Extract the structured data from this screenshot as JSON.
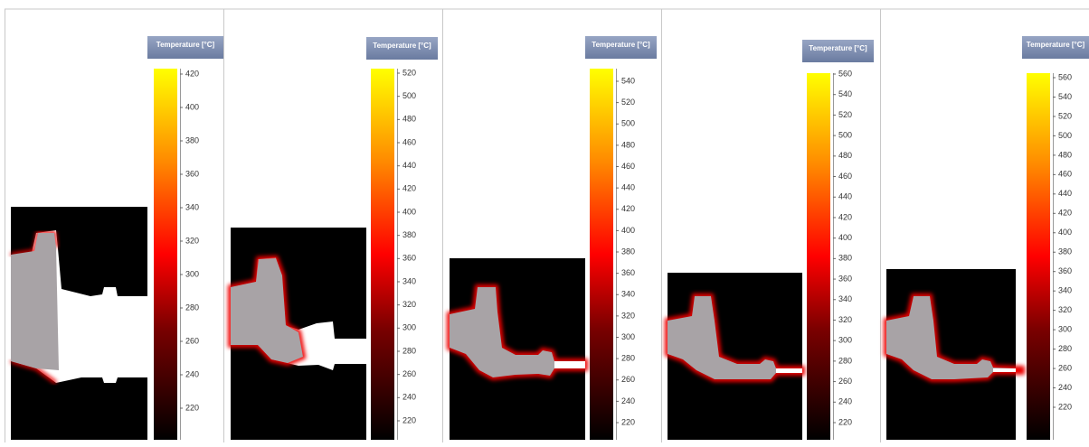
{
  "panels": [
    {
      "title": "Temperature [°C]",
      "ticks": [
        420,
        400,
        380,
        360,
        340,
        320,
        300,
        280,
        260,
        240,
        220
      ]
    },
    {
      "title": "Temperature [°C]",
      "ticks": [
        520,
        500,
        480,
        460,
        440,
        420,
        400,
        380,
        360,
        340,
        320,
        300,
        280,
        260,
        240,
        220
      ]
    },
    {
      "title": "Temperature [°C]",
      "ticks": [
        540,
        520,
        500,
        480,
        460,
        440,
        420,
        400,
        380,
        360,
        340,
        320,
        300,
        280,
        260,
        240,
        220
      ]
    },
    {
      "title": "Temperature [°C]",
      "ticks": [
        560,
        540,
        520,
        500,
        480,
        460,
        440,
        420,
        400,
        380,
        360,
        340,
        320,
        300,
        280,
        260,
        240,
        220
      ]
    },
    {
      "title": "Temperature [°C]",
      "ticks": [
        560,
        540,
        520,
        500,
        480,
        460,
        440,
        420,
        400,
        380,
        360,
        340,
        320,
        300,
        280,
        260,
        240,
        220
      ]
    }
  ]
}
